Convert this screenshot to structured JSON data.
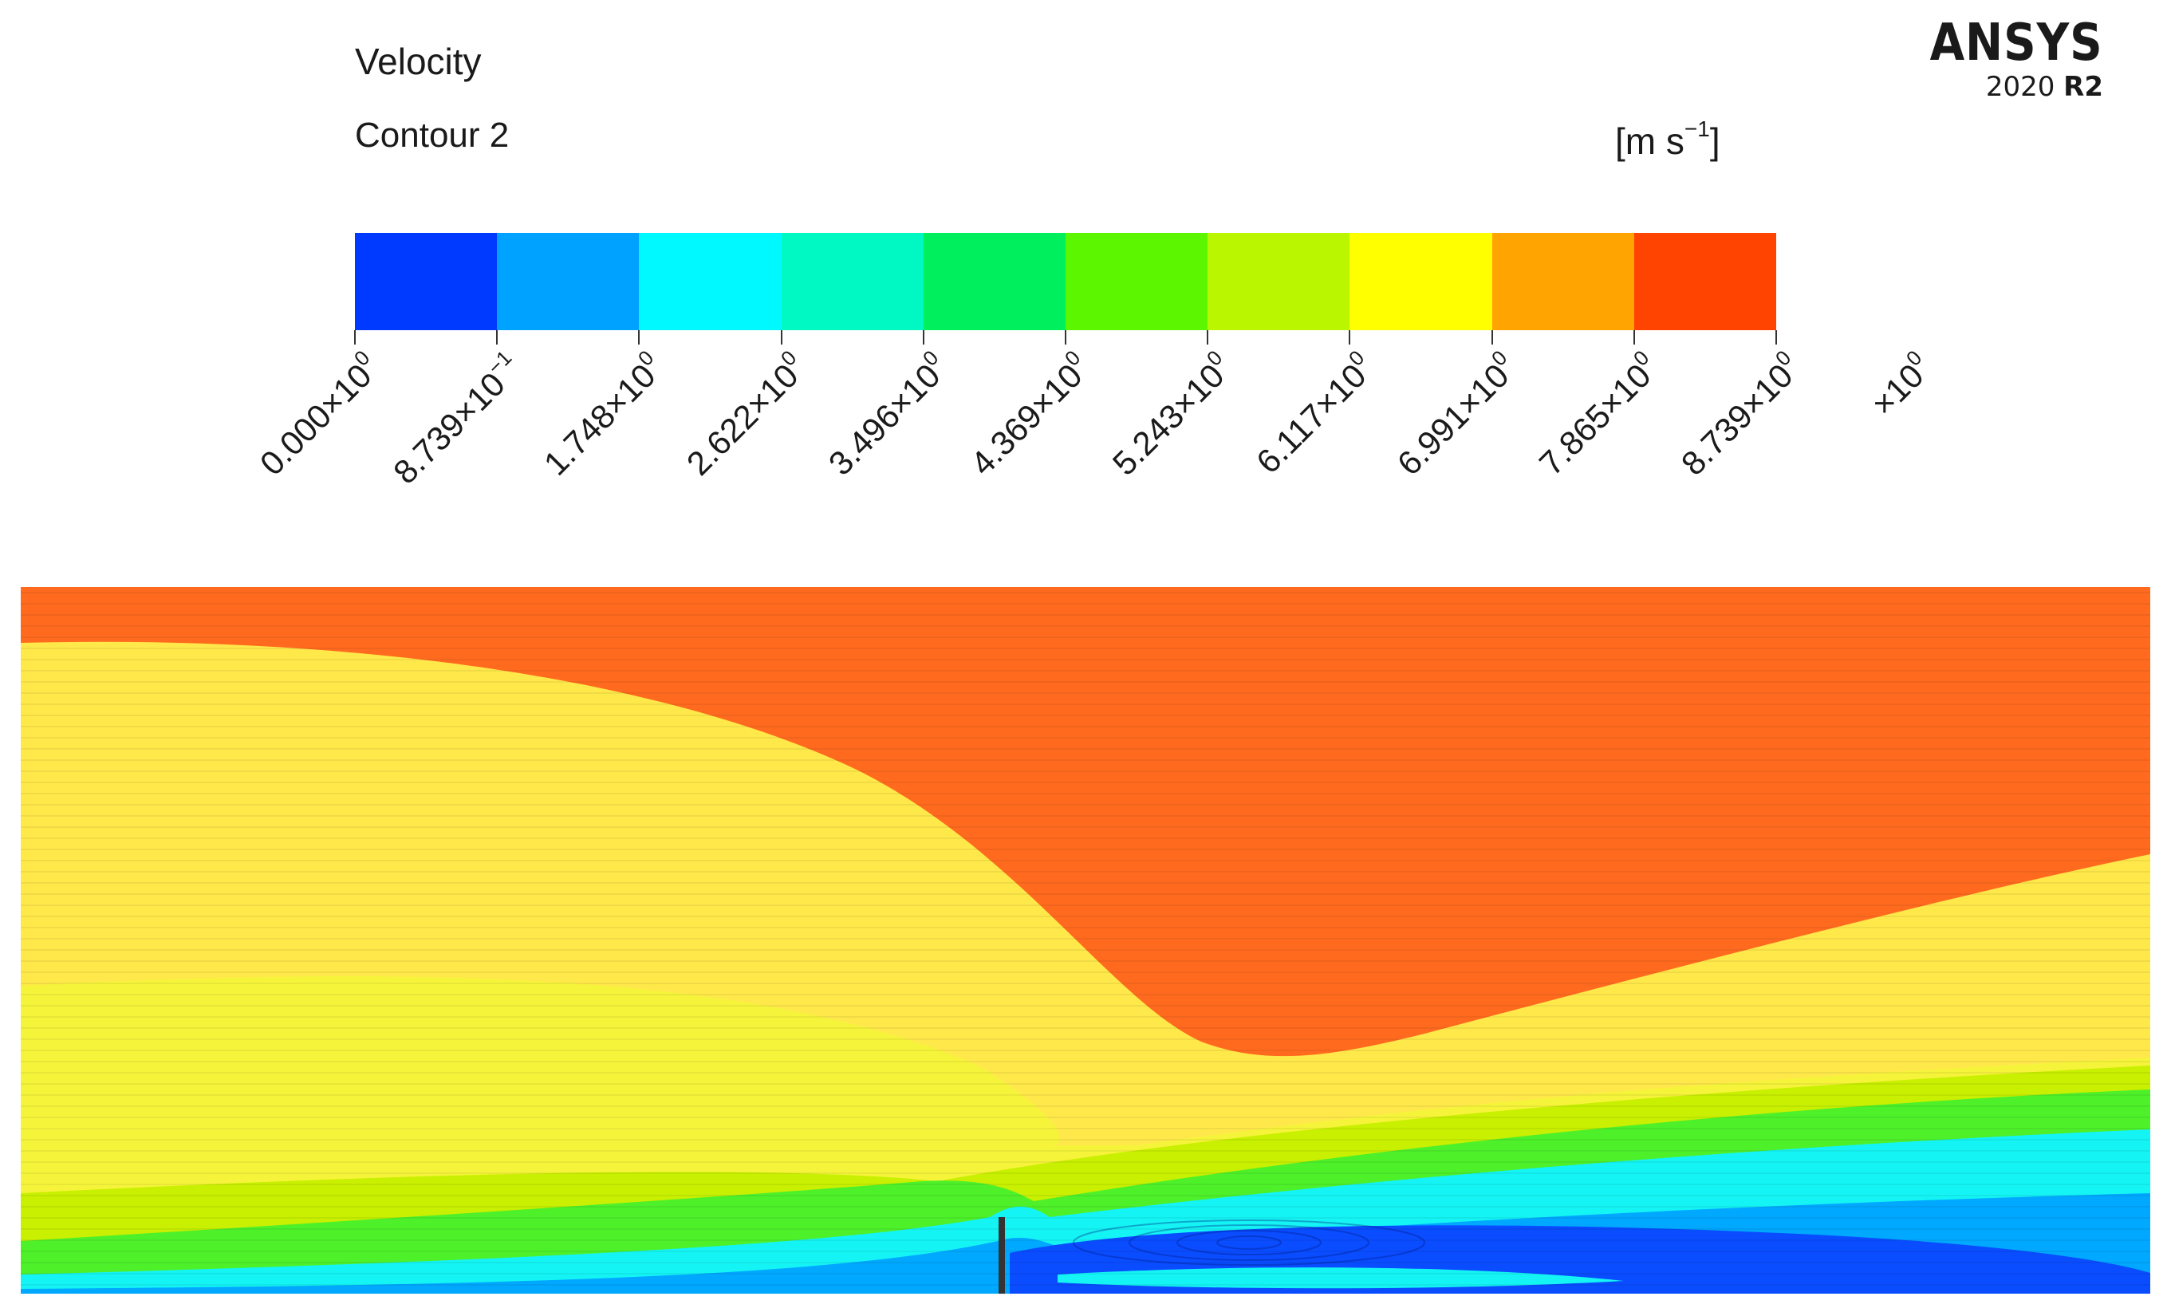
{
  "header": {
    "title": "Velocity",
    "subtitle": "Contour 2",
    "units": "[m s",
    "units_exp": "−1",
    "units_close": "]"
  },
  "logo": {
    "brand": "ANSYS",
    "version": "2020",
    "release": "R2"
  },
  "colorbar": {
    "colors": [
      "#0039ff",
      "#00a2ff",
      "#00f9ff",
      "#00f9c2",
      "#00ef5c",
      "#5cf600",
      "#b9f600",
      "#ffff00",
      "#ffa400",
      "#ff4300"
    ],
    "ticks": [
      {
        "mantissa": "0.000×10",
        "exp": "0"
      },
      {
        "mantissa": "8.739×10",
        "exp": "−1"
      },
      {
        "mantissa": "1.748×10",
        "exp": "0"
      },
      {
        "mantissa": "2.622×10",
        "exp": "0"
      },
      {
        "mantissa": "3.496×10",
        "exp": "0"
      },
      {
        "mantissa": "4.369×10",
        "exp": "0"
      },
      {
        "mantissa": "5.243×10",
        "exp": "0"
      },
      {
        "mantissa": "6.117×10",
        "exp": "0"
      },
      {
        "mantissa": "6.991×10",
        "exp": "0"
      },
      {
        "mantissa": "7.865×10",
        "exp": "0"
      },
      {
        "mantissa": "8.739×10",
        "exp": "0"
      }
    ],
    "extra_label": "×10",
    "extra_exp": "0"
  },
  "contour_colors": {
    "freestream": "#ff6a1f",
    "wake_yellow": "#ffe94a",
    "yellow": "#f6f43a",
    "yellow_green": "#c8f000",
    "green": "#4ef02a",
    "cyan": "#14f4f4",
    "light_blue": "#00a8ff",
    "blue": "#0a4cff",
    "structure": "#333333"
  }
}
